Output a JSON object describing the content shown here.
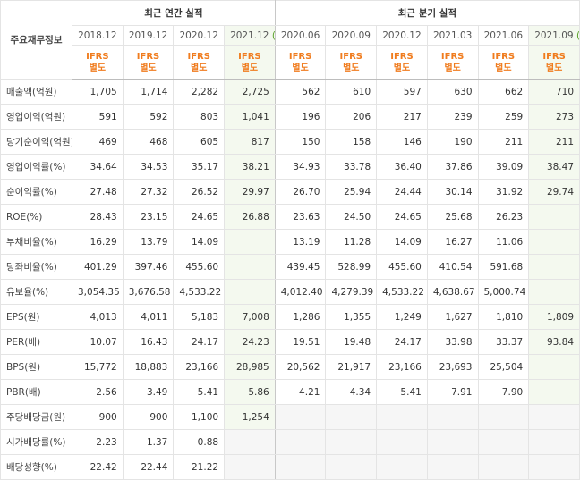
{
  "header": {
    "title": "주요재무정보"
  },
  "groups": [
    {
      "label": "최근 연간 실적",
      "columns": [
        {
          "period": "2018.12",
          "standard": "IFRS",
          "basis": "별도"
        },
        {
          "period": "2019.12",
          "standard": "IFRS",
          "basis": "별도"
        },
        {
          "period": "2020.12",
          "standard": "IFRS",
          "basis": "별도"
        },
        {
          "period": "2021.12",
          "mark": "(E)",
          "standard": "IFRS",
          "basis": "별도"
        }
      ]
    },
    {
      "label": "최근 분기 실적",
      "columns": [
        {
          "period": "2020.06",
          "standard": "IFRS",
          "basis": "별도"
        },
        {
          "period": "2020.09",
          "standard": "IFRS",
          "basis": "별도"
        },
        {
          "period": "2020.12",
          "standard": "IFRS",
          "basis": "별도"
        },
        {
          "period": "2021.03",
          "standard": "IFRS",
          "basis": "별도"
        },
        {
          "period": "2021.06",
          "standard": "IFRS",
          "basis": "별도"
        },
        {
          "period": "2021.09",
          "mark": "(E)",
          "standard": "IFRS",
          "basis": "별도"
        }
      ]
    }
  ],
  "row_groups": [
    {
      "rows": [
        {
          "label": "매출액(억원)",
          "values": [
            "1,705",
            "1,714",
            "2,282",
            "2,725",
            "562",
            "610",
            "597",
            "630",
            "662",
            "710"
          ]
        },
        {
          "label": "영업이익(억원)",
          "values": [
            "591",
            "592",
            "803",
            "1,041",
            "196",
            "206",
            "217",
            "239",
            "259",
            "273"
          ]
        },
        {
          "label": "당기순이익(억원)",
          "values": [
            "469",
            "468",
            "605",
            "817",
            "150",
            "158",
            "146",
            "190",
            "211",
            "211"
          ]
        }
      ]
    },
    {
      "rows": [
        {
          "label": "영업이익률(%)",
          "values": [
            "34.64",
            "34.53",
            "35.17",
            "38.21",
            "34.93",
            "33.78",
            "36.40",
            "37.86",
            "39.09",
            "38.47"
          ]
        },
        {
          "label": "순이익률(%)",
          "values": [
            "27.48",
            "27.32",
            "26.52",
            "29.97",
            "26.70",
            "25.94",
            "24.44",
            "30.14",
            "31.92",
            "29.74"
          ]
        },
        {
          "label": "ROE(%)",
          "values": [
            "28.43",
            "23.15",
            "24.65",
            "26.88",
            "23.63",
            "24.50",
            "24.65",
            "25.68",
            "26.23",
            null
          ]
        }
      ]
    },
    {
      "rows": [
        {
          "label": "부채비율(%)",
          "values": [
            "16.29",
            "13.79",
            "14.09",
            null,
            "13.19",
            "11.28",
            "14.09",
            "16.27",
            "11.06",
            null
          ]
        },
        {
          "label": "당좌비율(%)",
          "values": [
            "401.29",
            "397.46",
            "455.60",
            null,
            "439.45",
            "528.99",
            "455.60",
            "410.54",
            "591.68",
            null
          ]
        },
        {
          "label": "유보율(%)",
          "values": [
            "3,054.35",
            "3,676.58",
            "4,533.22",
            null,
            "4,012.40",
            "4,279.39",
            "4,533.22",
            "4,638.67",
            "5,000.74",
            null
          ]
        }
      ]
    },
    {
      "rows": [
        {
          "label": "EPS(원)",
          "values": [
            "4,013",
            "4,011",
            "5,183",
            "7,008",
            "1,286",
            "1,355",
            "1,249",
            "1,627",
            "1,810",
            "1,809"
          ]
        },
        {
          "label": "PER(배)",
          "values": [
            "10.07",
            "16.43",
            "24.17",
            "24.23",
            "19.51",
            "19.48",
            "24.17",
            "33.98",
            "33.37",
            "93.84"
          ]
        },
        {
          "label": "BPS(원)",
          "values": [
            "15,772",
            "18,883",
            "23,166",
            "28,985",
            "20,562",
            "21,917",
            "23,166",
            "23,693",
            "25,504",
            null
          ]
        },
        {
          "label": "PBR(배)",
          "values": [
            "2.56",
            "3.49",
            "5.41",
            "5.86",
            "4.21",
            "4.34",
            "5.41",
            "7.91",
            "7.90",
            null
          ]
        }
      ]
    },
    {
      "rows": [
        {
          "label": "주당배당금(원)",
          "values": [
            "900",
            "900",
            "1,100",
            "1,254",
            null,
            null,
            null,
            null,
            null,
            null
          ]
        },
        {
          "label": "시가배당률(%)",
          "values": [
            "2.23",
            "1.37",
            "0.88",
            null,
            null,
            null,
            null,
            null,
            null,
            null
          ]
        },
        {
          "label": "배당성향(%)",
          "values": [
            "22.42",
            "22.44",
            "21.22",
            null,
            null,
            null,
            null,
            null,
            null,
            null
          ]
        }
      ]
    }
  ]
}
